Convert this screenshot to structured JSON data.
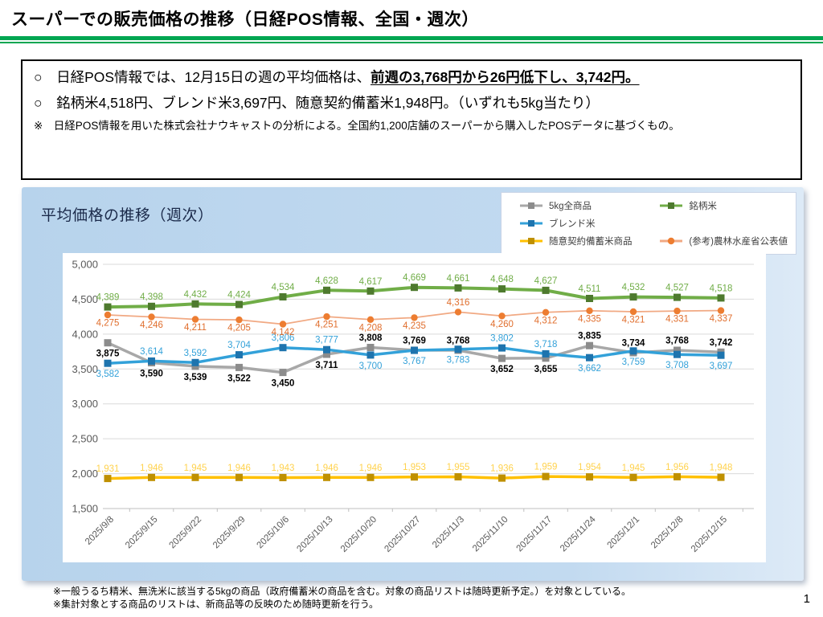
{
  "header": {
    "title": "スーパーでの販売価格の推移（日経POS情報、全国・週次）",
    "accent_color": "#00A651"
  },
  "summary": {
    "bullet1_prefix": "○　日経POS情報では、12月15日の週の平均価格は、",
    "bullet1_emphasis": "前週の3,768円から26円低下し、3,742円。",
    "bullet2": "○　銘柄米4,518円、ブレンド米3,697円、随意契約備蓄米1,948円。（いずれも5kg当たり）",
    "note": "※　日経POS情報を用いた株式会社ナウキャストの分析による。全国約1,200店舗のスーパーから購入したPOSデータに基づくもの。"
  },
  "chart_data": {
    "type": "line",
    "title": "平均価格の推移（週次）",
    "x": [
      "2025/9/8",
      "2025/9/15",
      "2025/9/22",
      "2025/9/29",
      "2025/10/6",
      "2025/10/13",
      "2025/10/20",
      "2025/10/27",
      "2025/11/3",
      "2025/11/10",
      "2025/11/17",
      "2025/11/24",
      "2025/12/1",
      "2025/12/8",
      "2025/12/15"
    ],
    "ylim": [
      1500,
      5000
    ],
    "ytick_step": 500,
    "grid": true,
    "legend_position": "top-right",
    "series": [
      {
        "name": "5kg全商品",
        "color": "#A8A8A8",
        "marker_color": "#8C8C8C",
        "marker": "square",
        "label_color": "#000000",
        "label_bold": true,
        "line_width": 3.5,
        "values": [
          3875,
          3590,
          3539,
          3522,
          3450,
          3711,
          3808,
          3769,
          3768,
          3652,
          3655,
          3835,
          3734,
          3768,
          3742
        ],
        "label_side": [
          "below",
          "below",
          "below",
          "below",
          "below",
          "below",
          "above",
          "above",
          "above",
          "below",
          "below",
          "above",
          "above",
          "above",
          "above"
        ]
      },
      {
        "name": "銘柄米",
        "color": "#70AD47",
        "marker_color": "#4E7A2E",
        "marker": "square",
        "label_color": "#70AD47",
        "label_bold": false,
        "line_width": 4,
        "values": [
          4389,
          4398,
          4432,
          4424,
          4534,
          4628,
          4617,
          4669,
          4661,
          4648,
          4627,
          4511,
          4532,
          4527,
          4518
        ],
        "label_side": "above"
      },
      {
        "name": "ブレンド米",
        "color": "#33A1D9",
        "marker_color": "#1E74AE",
        "marker": "square",
        "label_color": "#33A1D9",
        "label_bold": false,
        "line_width": 3.5,
        "values": [
          3582,
          3614,
          3592,
          3704,
          3806,
          3777,
          3700,
          3767,
          3783,
          3802,
          3718,
          3662,
          3759,
          3708,
          3697
        ],
        "label_side": [
          "below",
          "above",
          "above",
          "above",
          "above",
          "above",
          "below",
          "below",
          "below",
          "above",
          "above",
          "below",
          "below",
          "below",
          "below"
        ]
      },
      {
        "name": "随意契約備蓄米商品",
        "color": "#FFC000",
        "marker_color": "#BF9000",
        "marker": "square",
        "label_color": "#FFD24D",
        "label_bold": false,
        "line_width": 3.5,
        "values": [
          1931,
          1946,
          1945,
          1946,
          1943,
          1946,
          1946,
          1953,
          1955,
          1936,
          1959,
          1954,
          1945,
          1956,
          1948
        ],
        "label_side": "above"
      },
      {
        "name": "(参考)農林水産省公表値",
        "color": "#F1A983",
        "marker_color": "#ED7D31",
        "marker": "circle",
        "label_color": "#E06E2D",
        "label_bold": false,
        "line_width": 1.75,
        "values": [
          4275,
          4246,
          4211,
          4205,
          4142,
          4251,
          4208,
          4235,
          4316,
          4260,
          4312,
          4335,
          4321,
          4331,
          4337
        ],
        "label_side": [
          "below",
          "below",
          "below",
          "below",
          "below",
          "below",
          "below",
          "below",
          "above",
          "below",
          "below",
          "below",
          "below",
          "below",
          "below"
        ]
      }
    ]
  },
  "footnotes": [
    "※一般うるち精米、無洗米に該当する5kgの商品（政府備蓄米の商品を含む。対象の商品リストは随時更新予定。）を対象としている。",
    "※集計対象とする商品のリストは、新商品等の反映のため随時更新を行う。"
  ],
  "page": {
    "number": "1"
  }
}
